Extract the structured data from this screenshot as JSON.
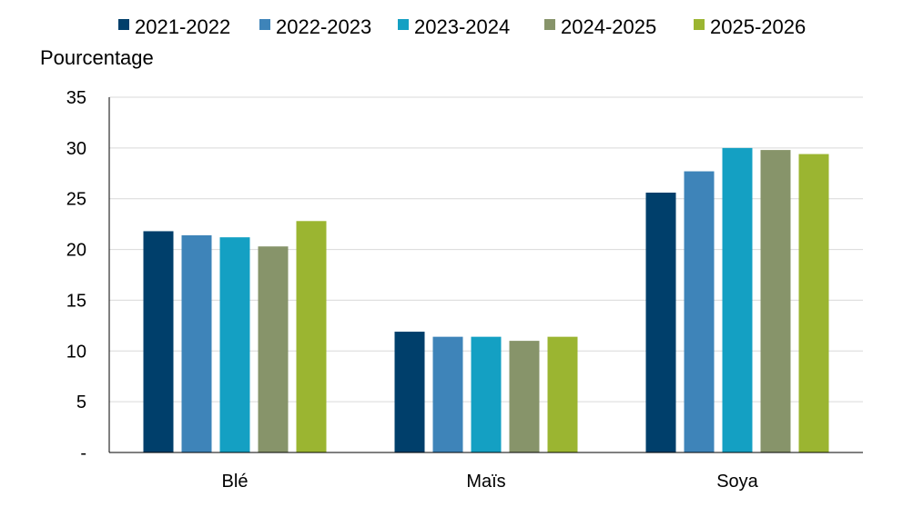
{
  "chart_data": {
    "type": "bar",
    "title": "",
    "xlabel": "",
    "ylabel": "Pourcentage",
    "categories": [
      "Blé",
      "Maïs",
      "Soya"
    ],
    "series": [
      {
        "name": "2021-2022",
        "color": "#003F6B",
        "values": [
          21.8,
          11.9,
          25.6
        ]
      },
      {
        "name": "2022-2023",
        "color": "#3E84B9",
        "values": [
          21.4,
          11.4,
          27.7
        ]
      },
      {
        "name": "2023-2024",
        "color": "#14A0C3",
        "values": [
          21.2,
          11.4,
          30.0
        ]
      },
      {
        "name": "2024-2025",
        "color": "#87946A",
        "values": [
          20.3,
          11.0,
          29.8
        ]
      },
      {
        "name": "2025-2026",
        "color": "#9BB531",
        "values": [
          22.8,
          11.4,
          29.4
        ]
      }
    ],
    "ylim": [
      0,
      35
    ],
    "yticks": [
      0,
      5,
      10,
      15,
      20,
      25,
      30,
      35
    ],
    "ytick_labels": [
      "-",
      "5",
      "10",
      "15",
      "20",
      "25",
      "30",
      "35"
    ],
    "grid": true,
    "legend_position": "top"
  }
}
